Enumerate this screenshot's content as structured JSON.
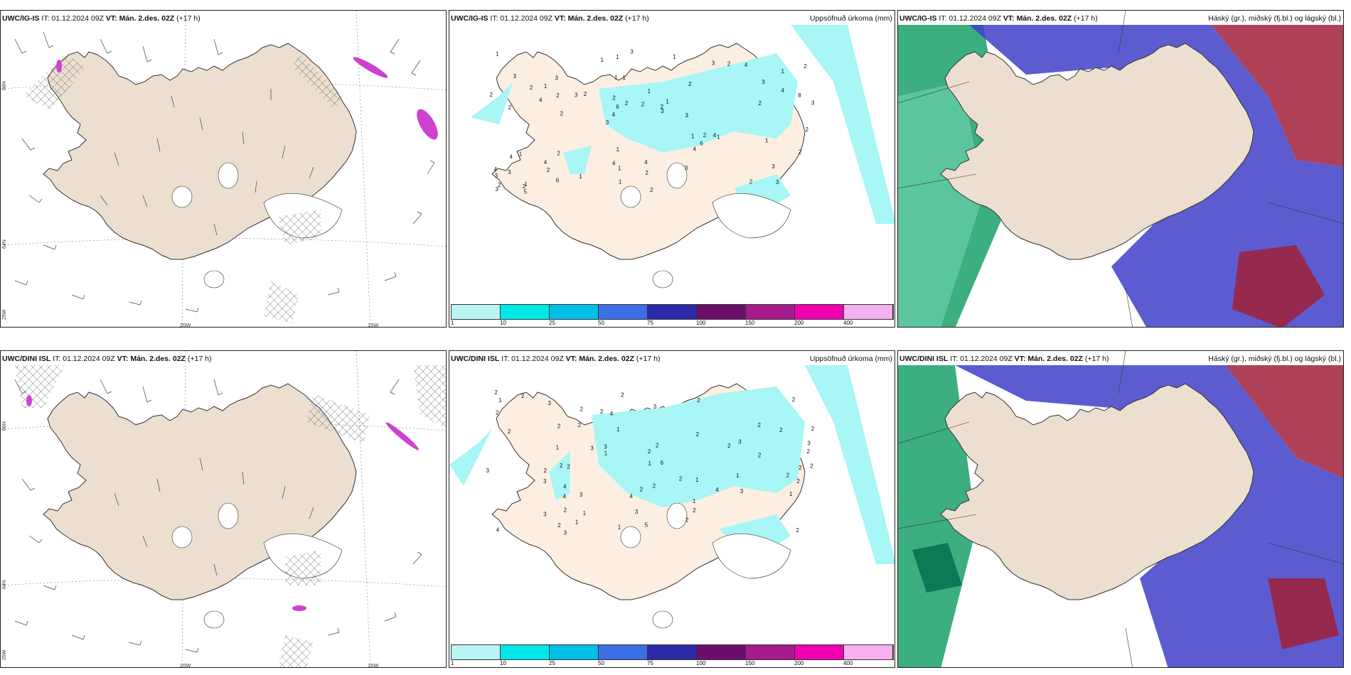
{
  "rows": [
    {
      "model": "UWC/IG-IS",
      "it_label": "IT: 01.12.2024 09Z",
      "vt_label": "VT: Mán. 2.des. 02Z",
      "lead": "(+17 h)"
    },
    {
      "model": "UWC/DINI ISL",
      "it_label": "IT: 01.12.2024 09Z",
      "vt_label": "VT: Mán. 2.des. 02Z",
      "lead": "(+17 h)"
    }
  ],
  "precip_title": "Uppsöfnuð úrkoma (mm)",
  "cloud_title": "Háský (gr.), miðský (fj.bl.) og lágský (bl.)",
  "axis_labels": {
    "lat_66": "66N",
    "lat_64": "64N",
    "lat_25w": "25W",
    "lon_20w": "20W",
    "lon_15w": "15W"
  },
  "colorbar": {
    "labels": [
      "1",
      "10",
      "25",
      "50",
      "75",
      "100",
      "150",
      "200",
      "400"
    ],
    "colors": [
      "#b9f5f5",
      "#00e8e8",
      "#00bfe6",
      "#3b6fe6",
      "#2a2aa8",
      "#6b0e6b",
      "#a51a8c",
      "#f000b0",
      "#f5b0f0"
    ]
  },
  "colors": {
    "land": "#ecdfcf",
    "precip_light": "#a8f6f6",
    "cloud_high": "#1aa06a",
    "cloud_mid": "#4040c8",
    "cloud_low": "#a0203a"
  },
  "precip_values_top": [
    "3",
    "2",
    "1",
    "3",
    "2",
    "1",
    "1",
    "1",
    "1",
    "2",
    "3",
    "2",
    "1",
    "1",
    "1",
    "3",
    "1",
    "3",
    "1",
    "4",
    "4",
    "4",
    "6",
    "3",
    "3",
    "2",
    "2",
    "3",
    "4",
    "2",
    "3",
    "4",
    "4",
    "6",
    "8",
    "2",
    "2",
    "1",
    "3",
    "4",
    "3",
    "2",
    "6",
    "3",
    "4",
    "5",
    "3",
    "4",
    "4",
    "3",
    "2",
    "2",
    "1",
    "2",
    "2",
    "1",
    "1",
    "2",
    "2",
    "1",
    "1",
    "2",
    "2",
    "4",
    "1",
    "2",
    "2",
    "2",
    "2",
    "2",
    "3",
    "3",
    "1",
    "1",
    "2"
  ],
  "precip_values_bottom": [
    "1",
    "2",
    "3",
    "2",
    "2",
    "1",
    "4",
    "3",
    "4",
    "4",
    "4",
    "6",
    "3",
    "3",
    "2",
    "3",
    "4",
    "3",
    "2",
    "3",
    "3",
    "3",
    "1",
    "2",
    "2",
    "2",
    "4",
    "3",
    "1",
    "2",
    "2",
    "2",
    "2",
    "2",
    "1",
    "1",
    "3",
    "1",
    "2",
    "2",
    "2",
    "5",
    "1",
    "1",
    "2",
    "2",
    "2",
    "2",
    "2",
    "2",
    "2",
    "2",
    "2",
    "2",
    "1",
    "2",
    "2",
    "2",
    "2",
    "2",
    "3",
    "2",
    "2",
    "1",
    "2",
    "2",
    "1",
    "3"
  ]
}
